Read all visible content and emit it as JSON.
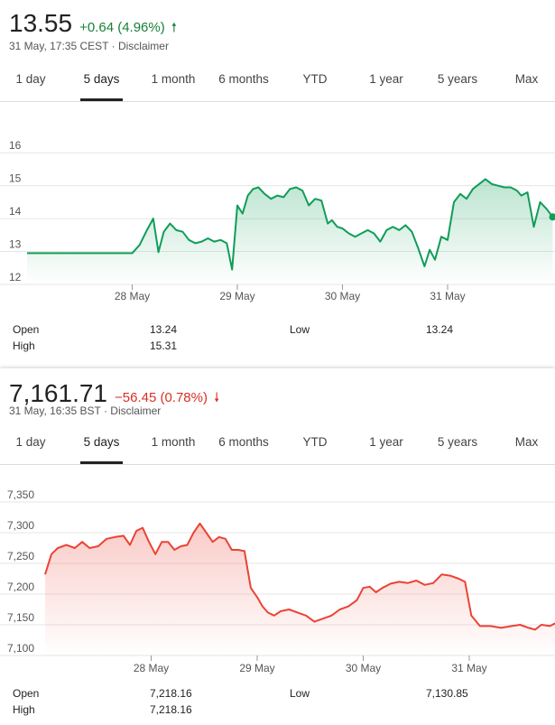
{
  "tabs": [
    "1 day",
    "5 days",
    "1 month",
    "6 months",
    "YTD",
    "1 year",
    "5 years",
    "Max"
  ],
  "stocks": [
    {
      "price": "13.55",
      "change": "+0.64 (4.96%)",
      "direction": "up",
      "arrow_icon": "up-arrow-icon",
      "meta": "31 May, 17:35 CEST · Disclaimer",
      "active_tab": "5 days",
      "line_color": "#0f9d58",
      "fill_color": "#0f9d58",
      "chart_data": {
        "type": "area",
        "yticks": [
          "16",
          "15",
          "14",
          "13",
          "12"
        ],
        "ylim": [
          12,
          16.5
        ],
        "xlim": [
          0,
          5
        ],
        "x_tick_labels": [
          "28 May",
          "29 May",
          "30 May",
          "31 May"
        ],
        "x_tick_positions": [
          1,
          2,
          3,
          4
        ],
        "grid": true,
        "x": [
          0.0,
          1.0,
          1.07,
          1.14,
          1.2,
          1.25,
          1.3,
          1.36,
          1.42,
          1.48,
          1.54,
          1.6,
          1.66,
          1.72,
          1.78,
          1.84,
          1.9,
          1.95,
          2.0,
          2.05,
          2.1,
          2.15,
          2.2,
          2.26,
          2.32,
          2.38,
          2.44,
          2.5,
          2.56,
          2.62,
          2.68,
          2.74,
          2.8,
          2.86,
          2.9,
          2.95,
          3.0,
          3.06,
          3.12,
          3.18,
          3.24,
          3.3,
          3.36,
          3.42,
          3.48,
          3.54,
          3.6,
          3.66,
          3.72,
          3.78,
          3.83,
          3.88,
          3.94,
          4.0,
          4.06,
          4.12,
          4.18,
          4.24,
          4.3,
          4.36,
          4.42,
          4.48,
          4.54,
          4.6,
          4.66,
          4.7,
          4.76,
          4.82,
          4.88,
          4.94,
          5.0
        ],
        "y": [
          12.95,
          12.95,
          13.2,
          13.65,
          14.0,
          12.98,
          13.6,
          13.85,
          13.65,
          13.6,
          13.35,
          13.25,
          13.3,
          13.4,
          13.3,
          13.35,
          13.25,
          12.45,
          14.4,
          14.15,
          14.7,
          14.9,
          14.95,
          14.75,
          14.6,
          14.7,
          14.65,
          14.9,
          14.95,
          14.85,
          14.4,
          14.6,
          14.55,
          13.85,
          13.95,
          13.75,
          13.7,
          13.55,
          13.45,
          13.55,
          13.65,
          13.55,
          13.3,
          13.65,
          13.75,
          13.65,
          13.8,
          13.6,
          13.1,
          12.55,
          13.05,
          12.75,
          13.45,
          13.35,
          14.5,
          14.75,
          14.6,
          14.9,
          15.05,
          15.2,
          15.05,
          15.0,
          14.95,
          14.95,
          14.85,
          14.7,
          14.8,
          13.75,
          14.5,
          14.3,
          14.05
        ]
      },
      "stats": {
        "open_label": "Open",
        "open_value": "13.24",
        "high_label": "High",
        "high_value": "15.31",
        "low_label": "Low",
        "low_value": "13.24"
      }
    },
    {
      "price": "7,161.71",
      "change": "−56.45 (0.78%)",
      "direction": "down",
      "arrow_icon": "down-arrow-icon",
      "meta": "31 May, 16:35 BST · Disclaimer",
      "active_tab": "5 days",
      "line_color": "#ea4335",
      "fill_color": "#ea4335",
      "chart_data": {
        "type": "area",
        "yticks": [
          "7,350",
          "7,300",
          "7,250",
          "7,200",
          "7,150",
          "7,100"
        ],
        "ylim": [
          7100,
          7350
        ],
        "xlim": [
          0,
          5
        ],
        "x_tick_labels": [
          "28 May",
          "29 May",
          "30 May",
          "31 May"
        ],
        "x_tick_positions": [
          1,
          2,
          3,
          4
        ],
        "grid": true,
        "x": [
          0.0,
          0.06,
          0.12,
          0.2,
          0.28,
          0.35,
          0.42,
          0.5,
          0.58,
          0.66,
          0.74,
          0.8,
          0.86,
          0.92,
          0.98,
          1.04,
          1.1,
          1.16,
          1.22,
          1.28,
          1.34,
          1.4,
          1.46,
          1.52,
          1.58,
          1.64,
          1.7,
          1.76,
          1.82,
          1.88,
          1.94,
          2.0,
          2.05,
          2.1,
          2.16,
          2.22,
          2.3,
          2.38,
          2.46,
          2.54,
          2.62,
          2.7,
          2.78,
          2.86,
          2.94,
          3.0,
          3.06,
          3.12,
          3.18,
          3.26,
          3.34,
          3.42,
          3.5,
          3.58,
          3.66,
          3.74,
          3.82,
          3.9,
          3.96,
          4.02,
          4.1,
          4.2,
          4.3,
          4.4,
          4.48,
          4.56,
          4.62,
          4.68,
          4.76,
          4.84,
          4.92,
          5.0
        ],
        "y": [
          7232,
          7265,
          7275,
          7280,
          7275,
          7285,
          7275,
          7278,
          7290,
          7293,
          7295,
          7280,
          7303,
          7308,
          7285,
          7265,
          7285,
          7285,
          7272,
          7278,
          7280,
          7300,
          7315,
          7300,
          7285,
          7293,
          7290,
          7272,
          7272,
          7270,
          7210,
          7195,
          7180,
          7170,
          7165,
          7172,
          7175,
          7170,
          7165,
          7155,
          7160,
          7165,
          7175,
          7180,
          7190,
          7210,
          7212,
          7203,
          7210,
          7217,
          7220,
          7218,
          7222,
          7215,
          7218,
          7232,
          7230,
          7225,
          7220,
          7165,
          7148,
          7148,
          7145,
          7148,
          7150,
          7145,
          7142,
          7150,
          7148,
          7155,
          7158,
          7162
        ]
      },
      "stats": {
        "open_label": "Open",
        "open_value": "7,218.16",
        "high_label": "High",
        "high_value": "7,218.16",
        "low_label": "Low",
        "low_value": "7,130.85"
      }
    }
  ]
}
